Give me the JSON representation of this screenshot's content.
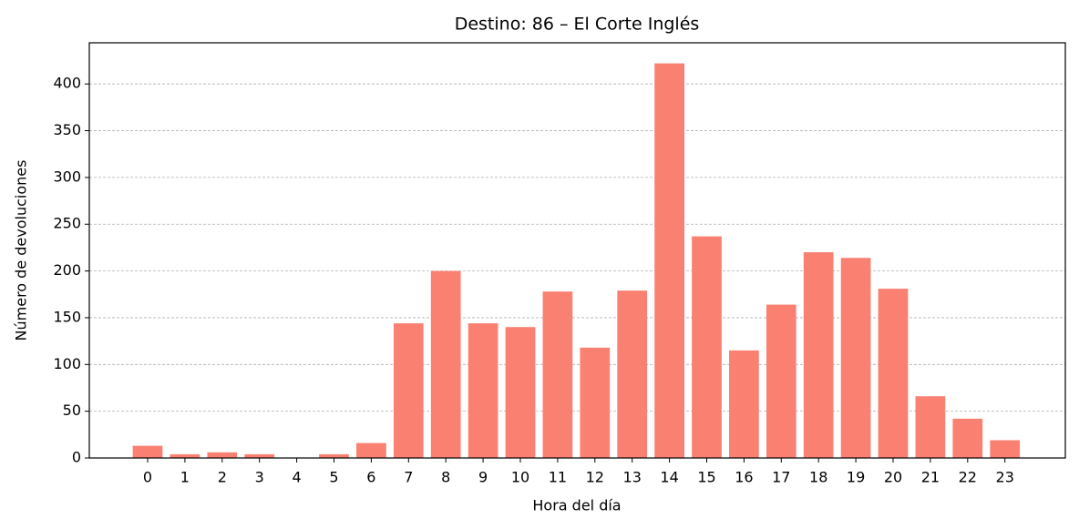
{
  "chart_data": {
    "type": "bar",
    "title": "Destino: 86 – El Corte Inglés",
    "x_label": "Hora del día",
    "y_label": "Número de devoluciones",
    "categories": [
      "0",
      "1",
      "2",
      "3",
      "4",
      "5",
      "6",
      "7",
      "8",
      "9",
      "10",
      "11",
      "12",
      "13",
      "14",
      "15",
      "16",
      "17",
      "18",
      "19",
      "20",
      "21",
      "22",
      "23"
    ],
    "values": [
      13,
      4,
      6,
      4,
      0,
      4,
      16,
      144,
      200,
      144,
      140,
      178,
      118,
      179,
      422,
      237,
      115,
      164,
      220,
      214,
      181,
      66,
      42,
      19
    ],
    "color": "#fa8072",
    "ylim": [
      0,
      444
    ],
    "yticks": [
      0,
      50,
      100,
      150,
      200,
      250,
      300,
      350,
      400
    ],
    "grid": true
  }
}
